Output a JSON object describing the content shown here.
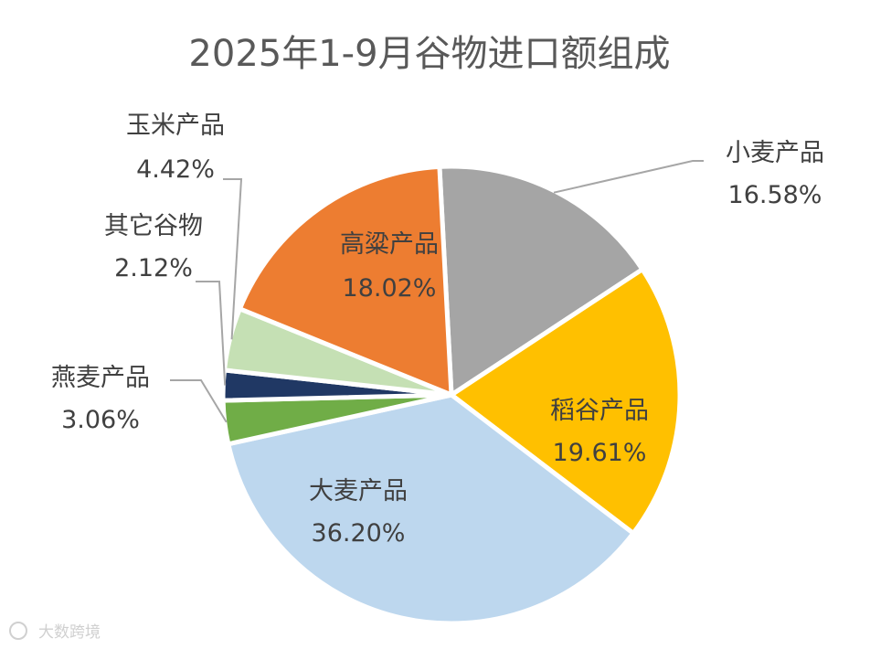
{
  "chart_data": {
    "type": "pie",
    "title": "2025年1-9月谷物进口额组成",
    "unit": "%",
    "slices": [
      {
        "name": "小麦产品",
        "value": 16.58,
        "display": "16.58%",
        "color": "#a5a5a5"
      },
      {
        "name": "稻谷产品",
        "value": 19.61,
        "display": "19.61%",
        "color": "#ffc000"
      },
      {
        "name": "大麦产品",
        "value": 36.2,
        "display": "36.20%",
        "color": "#bdd7ee"
      },
      {
        "name": "燕麦产品",
        "value": 3.06,
        "display": "3.06%",
        "color": "#70ad47"
      },
      {
        "name": "其它谷物",
        "value": 2.12,
        "display": "2.12%",
        "color": "#203864"
      },
      {
        "name": "玉米产品",
        "value": 4.42,
        "display": "4.42%",
        "color": "#c5e0b4"
      },
      {
        "name": "高粱产品",
        "value": 18.02,
        "display": "18.02%",
        "color": "#ed7d31"
      }
    ],
    "legend": "none"
  },
  "watermark": {
    "text": "大数跨境"
  }
}
